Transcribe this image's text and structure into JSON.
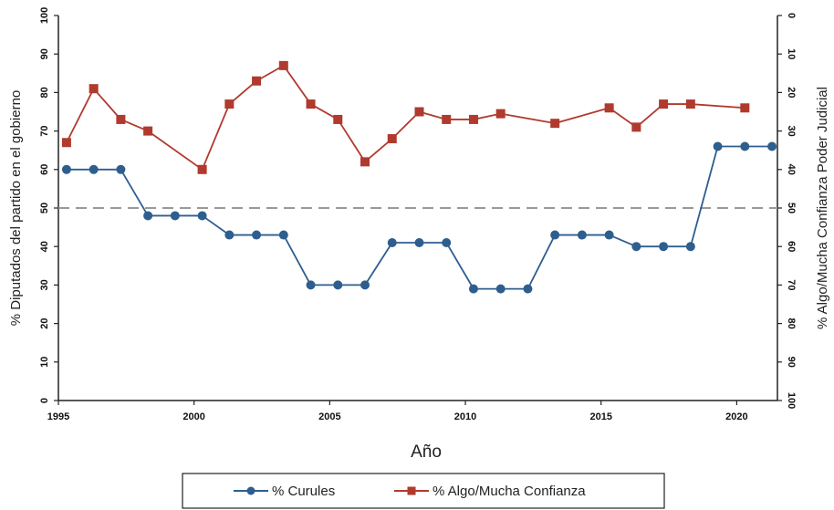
{
  "chart_data": {
    "type": "line",
    "xlabel": "Año",
    "ylabel_left": "% Diputados del partido en el gobierno",
    "ylabel_right": "% Algo/Mucha Confianza Poder Judicial",
    "xlim": [
      1995,
      2021.5
    ],
    "x_ticks": [
      "1995",
      "2000",
      "2005",
      "2010",
      "2015",
      "2020"
    ],
    "ylim_left": [
      0,
      100
    ],
    "y_ticks_left": [
      "0",
      "10",
      "20",
      "30",
      "40",
      "50",
      "60",
      "70",
      "80",
      "90",
      "100"
    ],
    "ylim_right_inverted": [
      0,
      100
    ],
    "y_ticks_right": [
      "0",
      "10",
      "20",
      "30",
      "40",
      "50",
      "60",
      "70",
      "80",
      "90",
      "100"
    ],
    "reference_line": {
      "y": 50,
      "style": "dashed",
      "color": "#999999"
    },
    "grid": false,
    "legend_position": "bottom",
    "series": [
      {
        "name": "% Curules",
        "axis": "left",
        "color": "#2E5E8E",
        "marker": "circle",
        "x": [
          1995.3,
          1996.3,
          1997.3,
          1998.3,
          1999.3,
          2000.3,
          2001.3,
          2002.3,
          2003.3,
          2004.3,
          2005.3,
          2006.3,
          2007.3,
          2008.3,
          2009.3,
          2010.3,
          2011.3,
          2012.3,
          2013.3,
          2014.3,
          2015.3,
          2016.3,
          2017.3,
          2018.3,
          2019.3,
          2020.3,
          2021.3
        ],
        "y": [
          60,
          60,
          60,
          48,
          48,
          48,
          43,
          43,
          43,
          30,
          30,
          30,
          41,
          41,
          41,
          29,
          29,
          29,
          43,
          43,
          43,
          40,
          40,
          40,
          66,
          66,
          66
        ]
      },
      {
        "name": "% Algo/Mucha Confianza",
        "axis": "left",
        "color": "#B03A2E",
        "marker": "square",
        "x": [
          1995.3,
          1996.3,
          1997.3,
          1998.3,
          2000.3,
          2001.3,
          2002.3,
          2003.3,
          2004.3,
          2005.3,
          2006.3,
          2007.3,
          2008.3,
          2009.3,
          2010.3,
          2011.3,
          2013.3,
          2015.3,
          2016.3,
          2017.3,
          2018.3,
          2020.3
        ],
        "y": [
          67,
          81,
          73,
          70,
          60,
          77,
          83,
          87,
          77,
          73,
          62,
          68,
          75,
          73,
          73,
          74.5,
          72,
          76,
          71,
          77,
          77,
          76
        ]
      }
    ]
  }
}
